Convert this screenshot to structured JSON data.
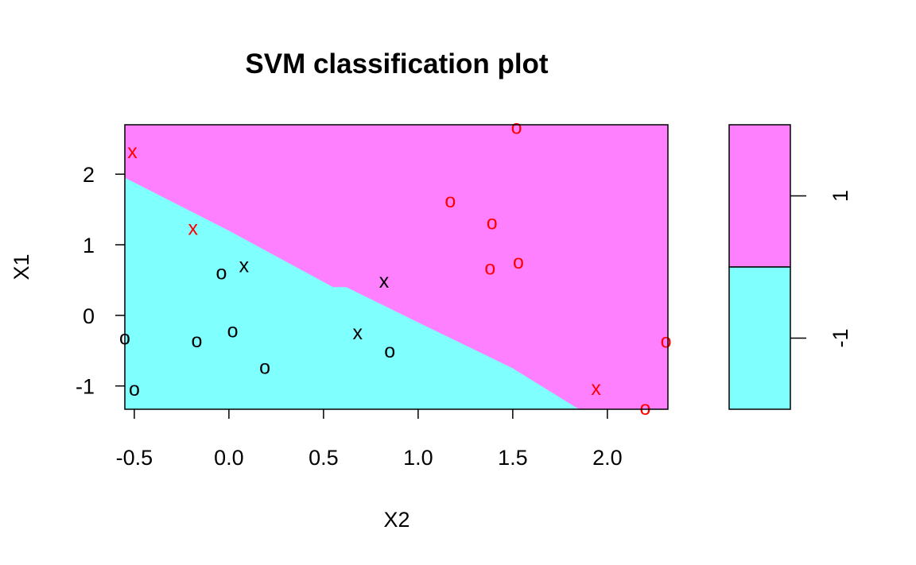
{
  "chart_data": {
    "type": "scatter",
    "title": "SVM classification plot",
    "xlabel": "X2",
    "ylabel": "X1",
    "xlim": [
      -0.55,
      2.32
    ],
    "ylim": [
      -1.33,
      2.7
    ],
    "xticks": [
      "-0.5",
      "0.0",
      "0.5",
      "1.0",
      "1.5",
      "2.0"
    ],
    "xtick_values": [
      -0.5,
      0.0,
      0.5,
      1.0,
      1.5,
      2.0
    ],
    "yticks": [
      "-1",
      "0",
      "1",
      "2"
    ],
    "ytick_values": [
      -1,
      0,
      1,
      2
    ],
    "regions": [
      {
        "class": "1",
        "color": "#ff80ff"
      },
      {
        "class": "-1",
        "color": "#80ffff"
      }
    ],
    "decision_boundary": [
      [
        -0.55,
        1.95
      ],
      [
        0.0,
        1.2
      ],
      [
        0.55,
        0.4
      ],
      [
        0.62,
        0.4
      ],
      [
        1.0,
        -0.1
      ],
      [
        1.5,
        -0.75
      ],
      [
        1.85,
        -1.33
      ]
    ],
    "legend": {
      "position": "right",
      "labels": [
        "1",
        "-1"
      ],
      "colors": [
        "#ff80ff",
        "#80ffff"
      ]
    },
    "points": [
      {
        "x": -0.51,
        "y": 2.32,
        "marker": "x",
        "color": "#ff0000"
      },
      {
        "x": 1.52,
        "y": 2.66,
        "marker": "o",
        "color": "#ff0000"
      },
      {
        "x": -0.19,
        "y": 1.23,
        "marker": "x",
        "color": "#ff0000"
      },
      {
        "x": 1.17,
        "y": 1.62,
        "marker": "o",
        "color": "#ff0000"
      },
      {
        "x": 1.39,
        "y": 1.31,
        "marker": "o",
        "color": "#ff0000"
      },
      {
        "x": 1.38,
        "y": 0.67,
        "marker": "o",
        "color": "#ff0000"
      },
      {
        "x": 1.53,
        "y": 0.75,
        "marker": "o",
        "color": "#ff0000"
      },
      {
        "x": 0.08,
        "y": 0.7,
        "marker": "x",
        "color": "#000000"
      },
      {
        "x": -0.04,
        "y": 0.6,
        "marker": "o",
        "color": "#000000"
      },
      {
        "x": 0.82,
        "y": 0.48,
        "marker": "x",
        "color": "#000000"
      },
      {
        "x": 2.31,
        "y": -0.37,
        "marker": "o",
        "color": "#ff0000"
      },
      {
        "x": -0.55,
        "y": -0.32,
        "marker": "o",
        "color": "#000000"
      },
      {
        "x": -0.17,
        "y": -0.36,
        "marker": "o",
        "color": "#000000"
      },
      {
        "x": 0.02,
        "y": -0.22,
        "marker": "o",
        "color": "#000000"
      },
      {
        "x": 0.68,
        "y": -0.25,
        "marker": "x",
        "color": "#000000"
      },
      {
        "x": 0.85,
        "y": -0.51,
        "marker": "o",
        "color": "#000000"
      },
      {
        "x": 0.19,
        "y": -0.74,
        "marker": "o",
        "color": "#000000"
      },
      {
        "x": -0.5,
        "y": -1.05,
        "marker": "o",
        "color": "#000000"
      },
      {
        "x": 1.94,
        "y": -1.04,
        "marker": "x",
        "color": "#ff0000"
      },
      {
        "x": 2.2,
        "y": -1.32,
        "marker": "o",
        "color": "#ff0000"
      }
    ]
  }
}
